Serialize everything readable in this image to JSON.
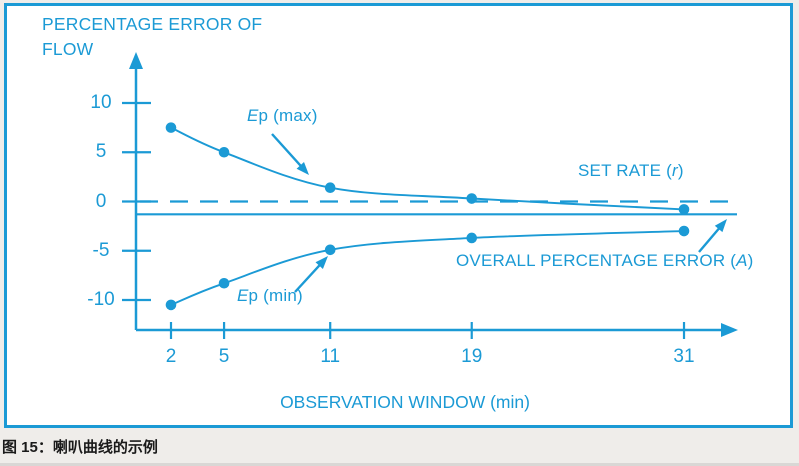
{
  "figure": {
    "y_axis_title_line1": "PERCENTAGE ERROR OF",
    "y_axis_title_line2": "FLOW",
    "x_axis_title": "OBSERVATION WINDOW (min)",
    "annotations": {
      "ep_max": {
        "italic": "E",
        "rest": "p (max)"
      },
      "ep_min": {
        "italic": "E",
        "rest": "p (min)"
      },
      "set_rate": {
        "pre": "SET RATE (",
        "italic": "r",
        "post": ")"
      },
      "overall_error": {
        "pre": "OVERALL PERCENTAGE ERROR (",
        "italic": "A",
        "post": ")"
      }
    },
    "colors": {
      "accent": "#1b9ad5",
      "background": "#efedea",
      "plot_background": "#ffffff",
      "caption_text": "#1a1a1a"
    }
  },
  "caption": "图 15：喇叭曲线的示例",
  "chart_data": {
    "type": "line",
    "title": "",
    "xlabel": "OBSERVATION WINDOW (min)",
    "ylabel": "PERCENTAGE ERROR OF FLOW",
    "x": [
      2,
      5,
      11,
      19,
      31
    ],
    "xticks": [
      2,
      5,
      11,
      19,
      31
    ],
    "yticks": [
      10,
      5,
      0,
      -5,
      -10
    ],
    "xlim": [
      0,
      34
    ],
    "ylim": [
      -13,
      13
    ],
    "grid": false,
    "legend_position": "none (curves annotated with arrow callouts)",
    "series": [
      {
        "name": "Ep (max)",
        "values": [
          7.5,
          5.0,
          1.4,
          0.3,
          -0.8
        ]
      },
      {
        "name": "Ep (min)",
        "values": [
          -10.5,
          -8.3,
          -4.9,
          -3.7,
          -3.0
        ]
      }
    ],
    "reference_lines": [
      {
        "name": "SET RATE (r)",
        "value": 0,
        "style": "dashed"
      },
      {
        "name": "OVERALL PERCENTAGE ERROR (A)",
        "value": -1.3,
        "style": "solid"
      }
    ]
  }
}
